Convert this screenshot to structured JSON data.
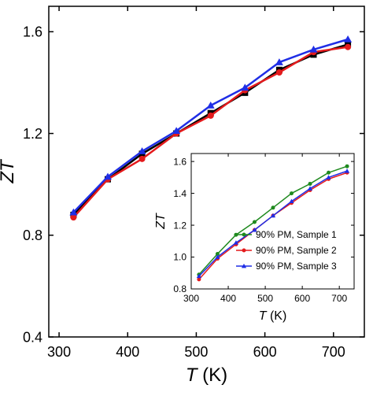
{
  "chart_data": [
    {
      "id": "main",
      "type": "line",
      "xlabel_base": "T",
      "xlabel_unit": "(K)",
      "ylabel": "ZT",
      "xlim": [
        285,
        745
      ],
      "ylim": [
        0.4,
        1.7
      ],
      "xticks": [
        300,
        400,
        500,
        600,
        700
      ],
      "yticks": [
        0.4,
        0.8,
        1.2,
        1.6
      ],
      "ytick_labels": [
        "0.4",
        "0.8",
        "1.2",
        "1.6"
      ],
      "grid": false,
      "legend": "none",
      "series": [
        {
          "color": "#000000",
          "marker": "square",
          "x": [
            321,
            371,
            421,
            471,
            521,
            571,
            621,
            671,
            721
          ],
          "y": [
            0.88,
            1.02,
            1.12,
            1.2,
            1.28,
            1.36,
            1.45,
            1.51,
            1.55
          ]
        },
        {
          "color": "#e41a1c",
          "marker": "circle",
          "x": [
            321,
            371,
            421,
            471,
            521,
            571,
            621,
            671,
            721
          ],
          "y": [
            0.87,
            1.02,
            1.1,
            1.2,
            1.27,
            1.37,
            1.44,
            1.52,
            1.54
          ]
        },
        {
          "color": "#1f2ee6",
          "marker": "triangle",
          "x": [
            321,
            371,
            421,
            471,
            521,
            571,
            621,
            671,
            721
          ],
          "y": [
            0.89,
            1.03,
            1.13,
            1.21,
            1.31,
            1.38,
            1.48,
            1.53,
            1.57
          ]
        }
      ]
    },
    {
      "id": "inset",
      "type": "line",
      "xlabel_base": "T",
      "xlabel_unit": "(K)",
      "ylabel": "ZT",
      "xlim": [
        300,
        740
      ],
      "ylim": [
        0.8,
        1.65
      ],
      "xticks": [
        300,
        400,
        500,
        600,
        700
      ],
      "yticks": [
        0.8,
        1.0,
        1.2,
        1.4,
        1.6
      ],
      "ytick_labels": [
        "0.8",
        "1.0",
        "1.2",
        "1.4",
        "1.6"
      ],
      "grid": false,
      "legend": "bottom-right",
      "series": [
        {
          "name": "90% PM, Sample 1",
          "color": "#1f8a1f",
          "marker": "circle",
          "x": [
            321,
            371,
            421,
            471,
            521,
            571,
            621,
            671,
            721
          ],
          "y": [
            0.89,
            1.02,
            1.14,
            1.22,
            1.31,
            1.4,
            1.46,
            1.53,
            1.57
          ]
        },
        {
          "name": "90% PM, Sample 2",
          "color": "#e41a1c",
          "marker": "circle",
          "x": [
            321,
            371,
            421,
            471,
            521,
            571,
            621,
            671,
            721
          ],
          "y": [
            0.86,
            0.99,
            1.08,
            1.17,
            1.26,
            1.34,
            1.42,
            1.49,
            1.53
          ]
        },
        {
          "name": "90% PM, Sample 3",
          "color": "#1f2ee6",
          "marker": "triangle",
          "x": [
            321,
            371,
            421,
            471,
            521,
            571,
            621,
            671,
            721
          ],
          "y": [
            0.88,
            1.0,
            1.09,
            1.17,
            1.26,
            1.35,
            1.43,
            1.5,
            1.54
          ]
        }
      ]
    }
  ]
}
